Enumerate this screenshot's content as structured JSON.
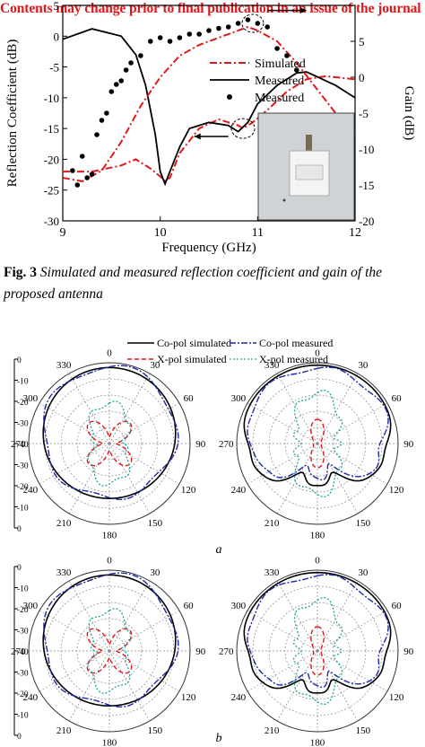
{
  "banner": "Contents may change prior to final publication in an issue of the journal",
  "fig3": {
    "chart_data": {
      "type": "line",
      "xlabel": "Frequency (GHz)",
      "ylabel_left": "Reflection Coefficient (dB)",
      "ylabel_right": "Gain (dB)",
      "xlim": [
        9,
        12
      ],
      "ylim_left": [
        -30,
        5
      ],
      "ylim_right": [
        -20,
        10
      ],
      "x_ticks": [
        "9",
        "10",
        "11",
        "12"
      ],
      "y_ticks_left": [
        "5",
        "0",
        "-5",
        "-10",
        "-15",
        "-20",
        "-25",
        "-30"
      ],
      "y_ticks_right": [
        "5",
        "0",
        "-5",
        "-10",
        "-15",
        "-20"
      ],
      "legend": {
        "position": "right-center",
        "entries": [
          "Simulated",
          "Measured",
          "Measured"
        ]
      },
      "series": [
        {
          "name": "Simulated",
          "axis": "left",
          "style": "dash-dot",
          "color": "#e0181b",
          "x": [
            9.0,
            9.3,
            9.6,
            9.75,
            9.9,
            10.0,
            10.05,
            10.1,
            10.2,
            10.4,
            10.6,
            10.8,
            10.85,
            10.95,
            11.1,
            11.3,
            11.5,
            11.7,
            12.0
          ],
          "y": [
            -22.0,
            -22.0,
            -21.0,
            -20.0,
            -21.5,
            -22.8,
            -23.5,
            -23.0,
            -19.0,
            -15.0,
            -13.5,
            -14.5,
            -15.0,
            -14.0,
            -12.0,
            -9.0,
            -7.0,
            -6.5,
            -7.0
          ]
        },
        {
          "name": "Measured",
          "axis": "left",
          "style": "solid",
          "color": "#000000",
          "x": [
            9.0,
            9.3,
            9.6,
            9.75,
            9.85,
            9.95,
            10.0,
            10.05,
            10.1,
            10.2,
            10.3,
            10.5,
            10.7,
            10.8,
            10.9,
            11.0,
            11.2,
            11.4,
            11.5,
            11.6,
            11.8,
            12.0
          ],
          "y": [
            -0.5,
            1.2,
            0.0,
            -3.0,
            -8.0,
            -16.0,
            -22.0,
            -24.0,
            -22.0,
            -18.0,
            -15.0,
            -14.0,
            -14.5,
            -15.5,
            -14.0,
            -11.0,
            -8.0,
            -6.0,
            -5.8,
            -6.5,
            -8.0,
            -10.0
          ]
        },
        {
          "name": "Simulated",
          "axis": "right",
          "style": "dash-dot",
          "color": "#e0181b",
          "x": [
            9.0,
            9.2,
            9.4,
            9.6,
            9.8,
            10.0,
            10.2,
            10.4,
            10.6,
            10.8,
            10.9,
            11.0,
            11.2,
            11.4,
            11.6,
            11.8,
            12.0
          ],
          "y": [
            -14.0,
            -14.5,
            -13.0,
            -9.0,
            -4.0,
            0.0,
            3.0,
            4.5,
            5.5,
            6.5,
            7.0,
            6.5,
            5.0,
            2.0,
            -1.5,
            -5.0,
            -8.0
          ]
        },
        {
          "name": "Measured",
          "axis": "right",
          "style": "marker",
          "color": "#000000",
          "x": [
            9.1,
            9.15,
            9.2,
            9.25,
            9.3,
            9.35,
            9.4,
            9.45,
            9.5,
            9.55,
            9.6,
            9.65,
            9.7,
            9.8,
            9.9,
            10.0,
            10.1,
            10.2,
            10.3,
            10.4,
            10.5,
            10.6,
            10.7,
            10.8,
            10.9,
            11.0,
            11.1,
            11.2,
            11.3,
            11.4
          ],
          "y": [
            -13.0,
            -15.0,
            -11.0,
            -14.0,
            -13.5,
            -8.0,
            -6.0,
            -5.0,
            -2.0,
            -1.0,
            -0.5,
            1.0,
            2.0,
            3.0,
            5.0,
            5.5,
            5.0,
            5.5,
            6.0,
            6.0,
            6.5,
            6.8,
            7.0,
            7.5,
            8.0,
            7.5,
            7.0,
            4.0,
            3.0,
            1.0
          ]
        }
      ]
    }
  },
  "caption": {
    "label": "Fig. 3",
    "text": "Simulated and measured reflection coefficient and gain of the proposed antenna"
  },
  "polar_figure": {
    "legend": [
      "Co-pol simulated",
      "Co-pol measured",
      "X-pol simulated",
      "X-pol measured"
    ],
    "angle_labels": [
      "0",
      "30",
      "60",
      "90",
      "120",
      "150",
      "180",
      "210",
      "240",
      "270",
      "300",
      "330"
    ],
    "radial_ticks": [
      "0",
      "-10",
      "-20",
      "-30",
      "-40",
      "-30",
      "-20",
      "-10",
      "0"
    ],
    "sub_labels": [
      "a",
      "b"
    ]
  }
}
